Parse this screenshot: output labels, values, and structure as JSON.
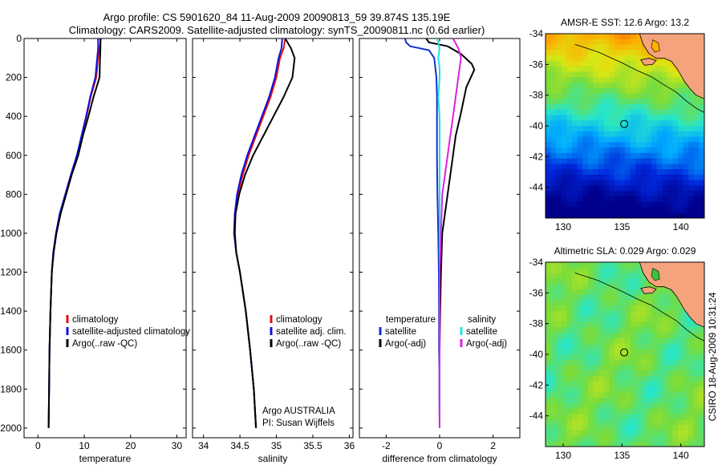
{
  "header": {
    "line1": "Argo profile: CS 5901620_84 11-Aug-2009 20090813_59 39.874S 135.19E",
    "line2": "Climatology: CARS2009. Satellite-adjusted climatology: synTS_20090811.nc (0.6d earlier)"
  },
  "footer_stamp": "CSIRO 18-Aug-2009 10:31:24",
  "colors": {
    "climatology": "#e01010",
    "satellite": "#1010e0",
    "argo": "#000000",
    "temperature_diff": "#1030d0",
    "salinity_diff": "#e020e0",
    "sat_temp_diff": "#20e0e0",
    "land": "#f4a37c",
    "profile_marker": "#000000"
  },
  "chart_data": [
    {
      "type": "line",
      "id": "temperature",
      "xlabel": "temperature",
      "ylabel": "",
      "xlim": [
        -3,
        32
      ],
      "ylim": [
        2050,
        0
      ],
      "xticks": [
        0,
        10,
        20,
        30
      ],
      "yticks": [
        0,
        200,
        400,
        600,
        800,
        1000,
        1200,
        1400,
        1600,
        1800,
        2000
      ],
      "legend": {
        "placement": "center-right",
        "entries": [
          "climatology",
          "satellite-adjusted climatology",
          "Argo(..raw -QC)"
        ]
      },
      "series": [
        {
          "name": "climatology",
          "color_key": "climatology",
          "x": [
            13.6,
            13.3,
            13.0,
            12.6,
            11.4,
            10.5,
            9.5,
            8.5,
            7.2,
            6.0,
            4.8,
            3.9,
            3.3,
            3.0,
            2.7,
            2.5,
            2.4,
            2.3
          ],
          "y": [
            0,
            50,
            100,
            200,
            300,
            400,
            500,
            600,
            700,
            800,
            900,
            1000,
            1100,
            1200,
            1400,
            1600,
            1800,
            2000
          ]
        },
        {
          "name": "satellite-adjusted climatology",
          "color_key": "satellite",
          "x": [
            13.0,
            13.0,
            12.8,
            12.4,
            11.3,
            10.4,
            9.4,
            8.4,
            7.1,
            5.9,
            4.7,
            3.9,
            3.3,
            3.0,
            2.7,
            2.5,
            2.4,
            2.3
          ],
          "y": [
            0,
            50,
            100,
            200,
            300,
            400,
            500,
            600,
            700,
            800,
            900,
            1000,
            1100,
            1200,
            1400,
            1600,
            1800,
            2000
          ]
        },
        {
          "name": "Argo(..raw -QC)",
          "color_key": "argo",
          "x": [
            13.5,
            13.5,
            13.4,
            13.3,
            12.0,
            10.9,
            9.7,
            8.7,
            7.3,
            6.1,
            4.9,
            4.0,
            3.4,
            3.0,
            2.7,
            2.5,
            2.4,
            2.3
          ],
          "y": [
            0,
            50,
            100,
            200,
            300,
            400,
            500,
            600,
            700,
            800,
            900,
            1000,
            1100,
            1200,
            1400,
            1600,
            1800,
            2000
          ]
        }
      ]
    },
    {
      "type": "line",
      "id": "salinity",
      "xlabel": "salinity",
      "ylabel": "",
      "xlim": [
        33.85,
        36.05
      ],
      "ylim": [
        2050,
        0
      ],
      "xticks": [
        34,
        34.5,
        35,
        35.5,
        36
      ],
      "legend": {
        "placement": "center-right",
        "entries": [
          "climatology",
          "satellite adj. clim.",
          "Argo(..raw -QC)"
        ]
      },
      "annotation": [
        "Argo AUSTRALIA",
        "PI: Susan Wijffels"
      ],
      "series": [
        {
          "name": "climatology",
          "color_key": "climatology",
          "x": [
            35.12,
            35.1,
            35.05,
            35.0,
            34.92,
            34.82,
            34.72,
            34.62,
            34.54,
            34.47,
            34.43,
            34.42,
            34.45,
            34.5,
            34.58,
            34.64,
            34.69,
            34.72
          ],
          "y": [
            0,
            50,
            100,
            200,
            300,
            400,
            500,
            600,
            700,
            800,
            900,
            1000,
            1100,
            1200,
            1400,
            1600,
            1800,
            2000
          ]
        },
        {
          "name": "satellite adj. clim.",
          "color_key": "satellite",
          "x": [
            35.08,
            35.07,
            35.03,
            34.98,
            34.9,
            34.8,
            34.7,
            34.6,
            34.52,
            34.46,
            34.43,
            34.42,
            34.45,
            34.5,
            34.58,
            34.64,
            34.69,
            34.72
          ],
          "y": [
            0,
            50,
            100,
            200,
            300,
            400,
            500,
            600,
            700,
            800,
            900,
            1000,
            1100,
            1200,
            1400,
            1600,
            1800,
            2000
          ]
        },
        {
          "name": "Argo(..raw -QC)",
          "color_key": "argo",
          "x": [
            35.12,
            35.2,
            35.25,
            35.22,
            35.1,
            34.96,
            34.82,
            34.68,
            34.57,
            34.49,
            34.44,
            34.43,
            34.45,
            34.5,
            34.58,
            34.64,
            34.69,
            34.72
          ],
          "y": [
            0,
            50,
            100,
            200,
            300,
            400,
            500,
            600,
            700,
            800,
            900,
            1000,
            1100,
            1200,
            1400,
            1600,
            1800,
            2000
          ]
        }
      ]
    },
    {
      "type": "line",
      "id": "difference",
      "xlabel": "difference from climatology",
      "ylabel": "",
      "xlim": [
        -3.0,
        3.0
      ],
      "ylim": [
        2050,
        0
      ],
      "xticks": [
        -2,
        0,
        2
      ],
      "legend": {
        "placement": "center",
        "columns": [
          {
            "heading": "temperature",
            "entries": [
              "satellite",
              "Argo(-adj)"
            ]
          },
          {
            "heading": "salinity",
            "entries": [
              "satellite",
              "Argo(-adj)"
            ]
          }
        ]
      },
      "series": [
        {
          "name": "temperature satellite",
          "color_key": "temperature_diff",
          "x": [
            -1.3,
            -1.25,
            -1.1,
            -0.4,
            -0.2,
            -0.12,
            -0.1,
            -0.1,
            -0.1,
            -0.1,
            -0.08,
            -0.05,
            -0.03,
            -0.02,
            -0.02,
            -0.01,
            -0.01,
            0.0
          ],
          "y": [
            0,
            20,
            40,
            60,
            100,
            200,
            300,
            400,
            500,
            600,
            800,
            1000,
            1200,
            1400,
            1600,
            1700,
            1850,
            2000
          ]
        },
        {
          "name": "temperature Argo(-adj)",
          "color_key": "argo",
          "x": [
            -0.5,
            -0.4,
            0.3,
            0.8,
            1.2,
            1.3,
            1.0,
            0.8,
            0.6,
            0.5,
            0.3,
            0.1,
            0.05,
            0.02,
            0.0,
            0.0,
            0.0,
            0.0
          ],
          "y": [
            0,
            20,
            40,
            80,
            130,
            160,
            250,
            380,
            500,
            600,
            800,
            1000,
            1200,
            1400,
            1600,
            1750,
            1900,
            2000
          ]
        },
        {
          "name": "salinity satellite",
          "color_key": "sat_temp_diff",
          "x": [
            -0.1,
            0.0,
            -0.05,
            0.0,
            0.0,
            -0.05,
            0.0,
            0.0,
            0.0,
            0.0,
            0.0,
            0.0,
            0.0,
            0.0,
            0.0,
            0.0
          ],
          "y": [
            0,
            50,
            100,
            150,
            200,
            300,
            400,
            600,
            800,
            1000,
            1200,
            1400,
            1600,
            1800,
            1900,
            2000
          ]
        },
        {
          "name": "salinity Argo(-adj)",
          "color_key": "salinity_diff",
          "x": [
            0.5,
            0.7,
            0.8,
            0.75,
            0.7,
            0.6,
            0.5,
            0.4,
            0.3,
            0.2,
            0.1,
            0.05,
            0.0,
            0.0,
            0.0,
            0.0,
            0.0
          ],
          "y": [
            0,
            50,
            100,
            150,
            200,
            300,
            400,
            500,
            600,
            700,
            800,
            1000,
            1200,
            1400,
            1600,
            1800,
            2000
          ]
        }
      ]
    },
    {
      "type": "heatmap",
      "id": "sst_map",
      "title": "AMSR-E SST: 12.6 Argo: 13.2",
      "xlim": [
        128.5,
        142
      ],
      "ylim": [
        -46,
        -34
      ],
      "xticks": [
        130,
        135,
        140
      ],
      "yticks": [
        -34,
        -36,
        -38,
        -40,
        -42,
        -44
      ],
      "profile_location": {
        "lon": 135.19,
        "lat": -39.874
      }
    },
    {
      "type": "heatmap",
      "id": "sla_map",
      "title": "Altimetric SLA: 0.029 Argo: 0.029",
      "xlim": [
        128.5,
        142
      ],
      "ylim": [
        -46,
        -34
      ],
      "xticks": [
        130,
        135,
        140
      ],
      "yticks": [
        -34,
        -36,
        -38,
        -40,
        -42,
        -44
      ],
      "profile_location": {
        "lon": 135.19,
        "lat": -39.874
      }
    }
  ]
}
